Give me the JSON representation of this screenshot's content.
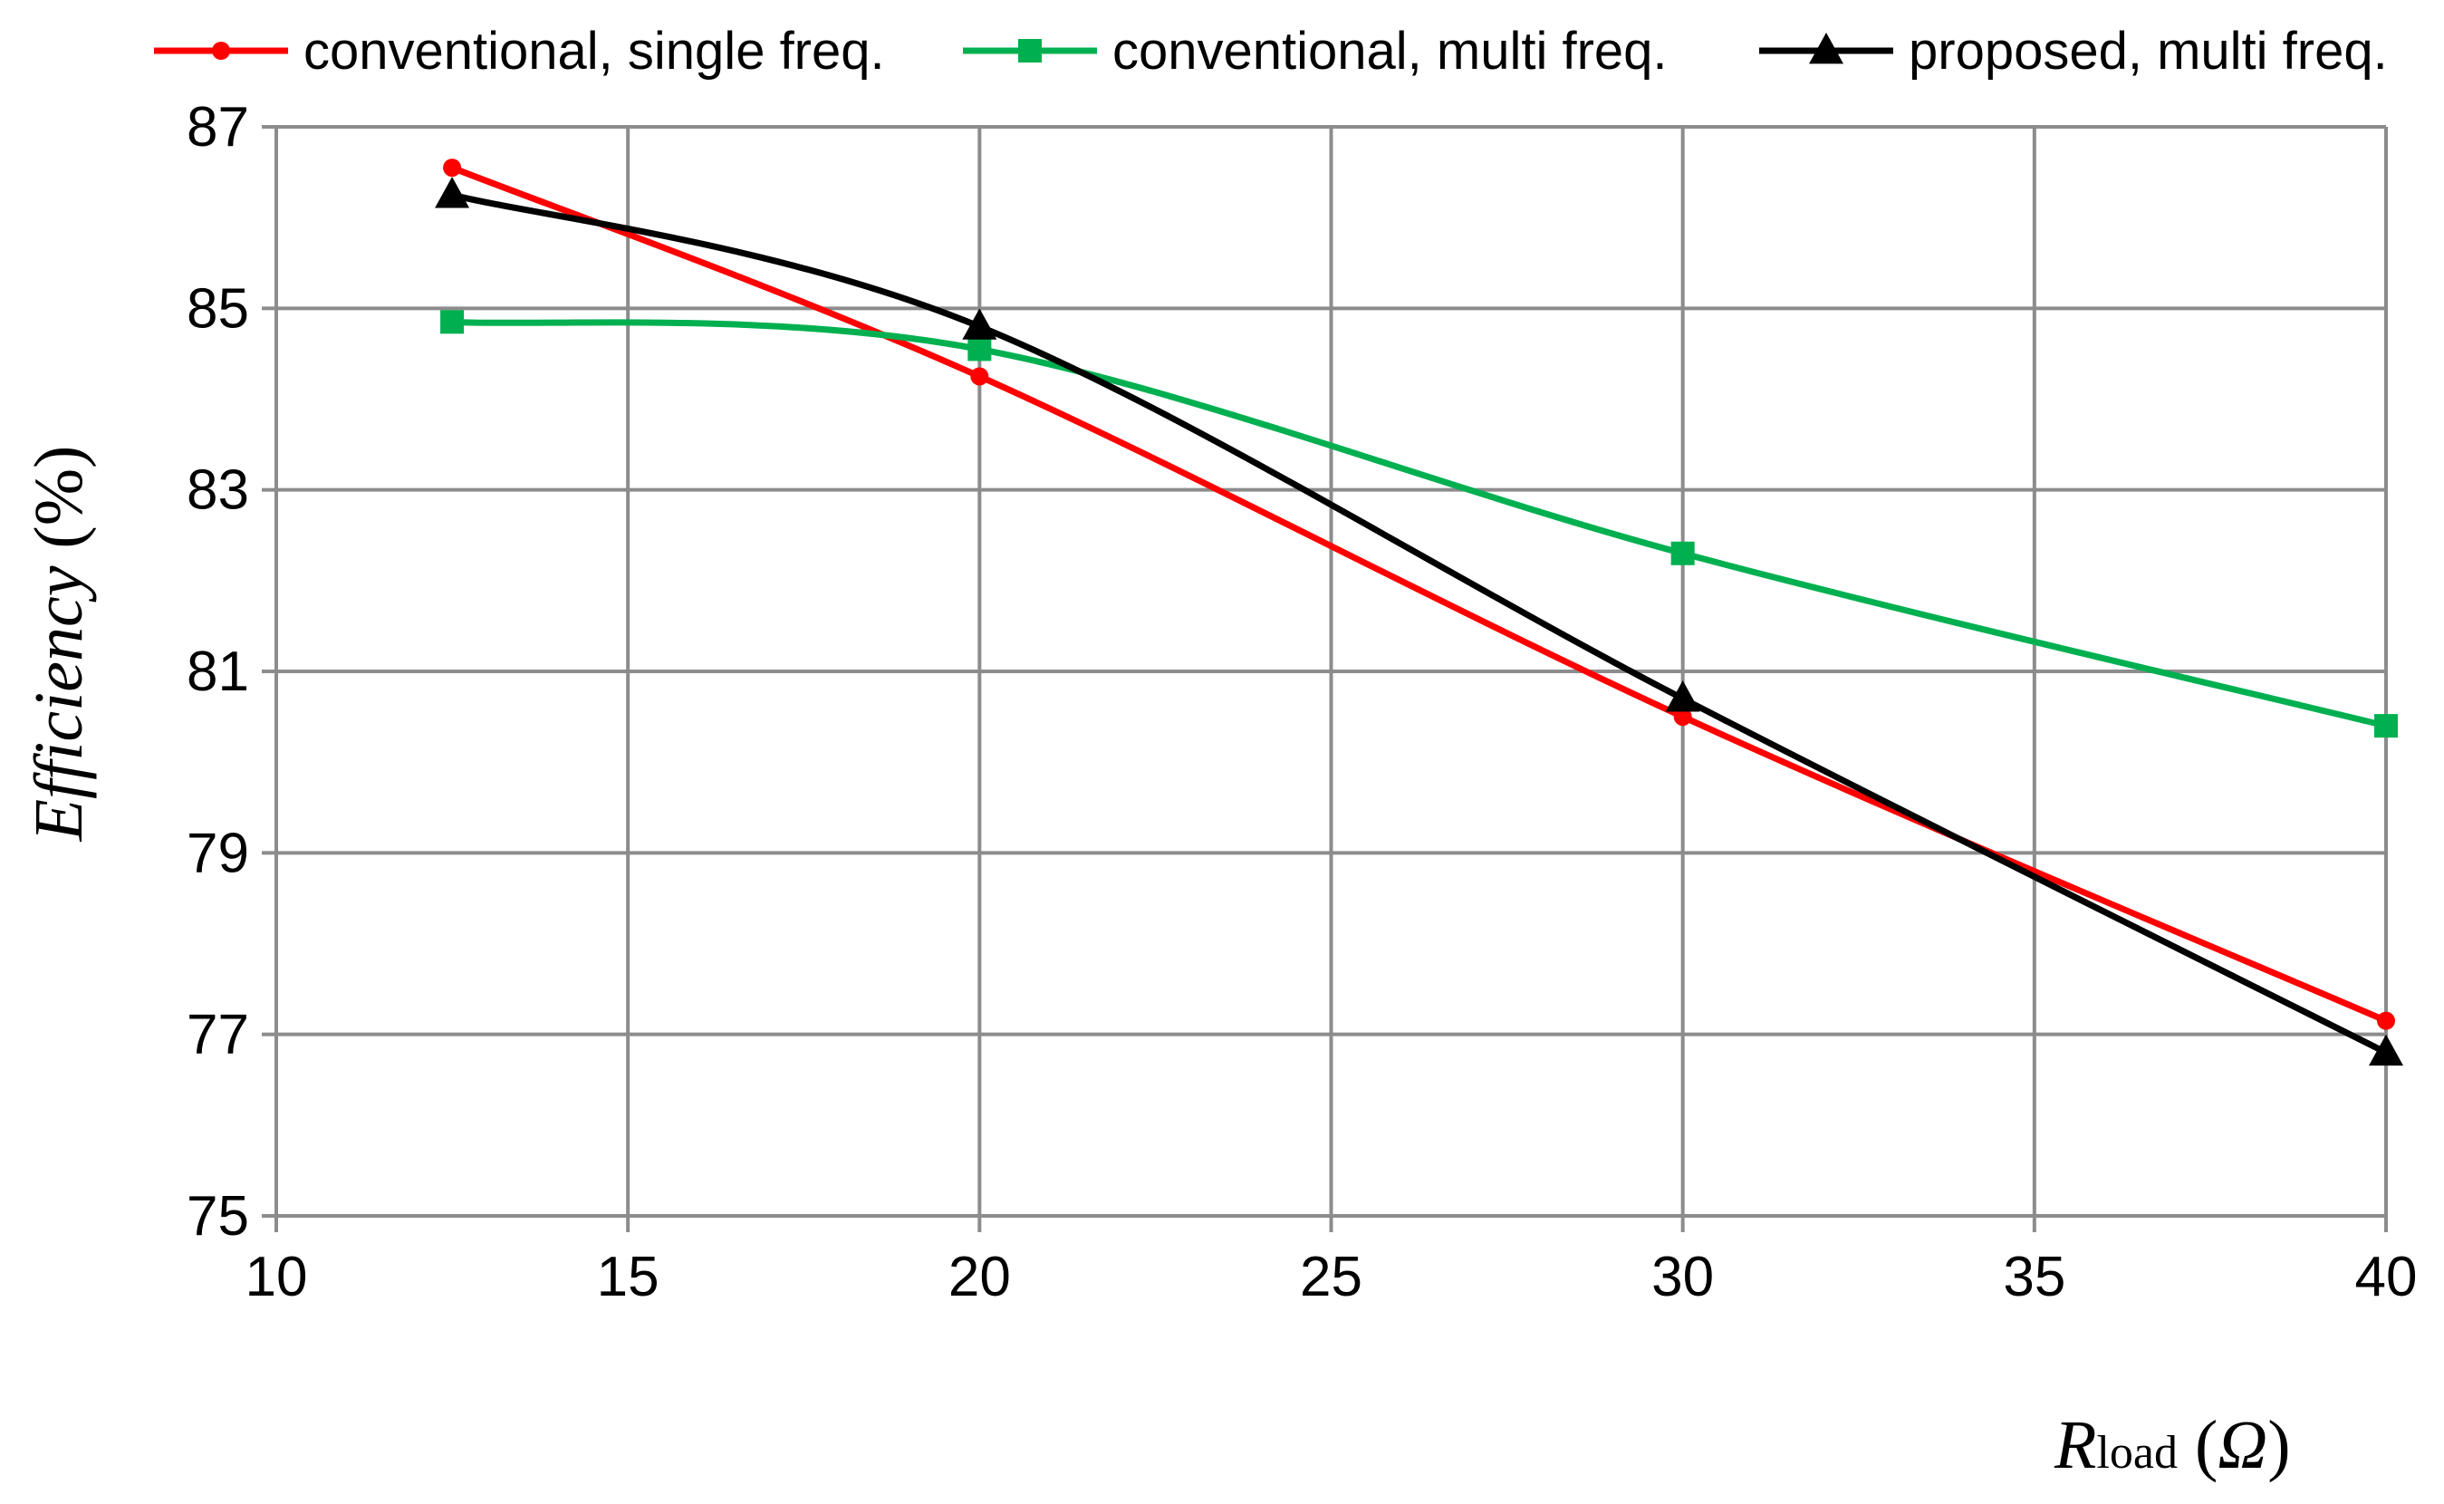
{
  "chart_data": {
    "type": "line",
    "xlim": [
      10,
      40
    ],
    "ylim": [
      75,
      87
    ],
    "x_ticks": [
      "10",
      "15",
      "20",
      "25",
      "30",
      "35",
      "40"
    ],
    "y_ticks": [
      "75",
      "77",
      "79",
      "81",
      "83",
      "85",
      "87"
    ],
    "grid": true,
    "legend_position": "top",
    "xlabel": {
      "symbol": "R",
      "subscript": "load",
      "unit_open": "(",
      "unit": "Ω",
      "unit_close": ")"
    },
    "ylabel": {
      "text": "Efficiency",
      "unit": "(%)"
    },
    "series": [
      {
        "name": "conventional, single freq.",
        "color": "#ff0000",
        "marker": "circle",
        "points": [
          [
            12.5,
            86.55
          ],
          [
            20,
            84.25
          ],
          [
            30,
            80.5
          ],
          [
            40,
            77.15
          ]
        ]
      },
      {
        "name": "conventional, multi freq.",
        "color": "#00b050",
        "marker": "square",
        "points": [
          [
            12.5,
            84.85
          ],
          [
            20,
            84.55
          ],
          [
            30,
            82.3
          ],
          [
            40,
            80.4
          ]
        ]
      },
      {
        "name": "proposed, multi freq.",
        "color": "#000000",
        "marker": "triangle",
        "points": [
          [
            12.5,
            86.25
          ],
          [
            20,
            84.8
          ],
          [
            30,
            80.7
          ],
          [
            40,
            76.8
          ]
        ]
      }
    ]
  }
}
